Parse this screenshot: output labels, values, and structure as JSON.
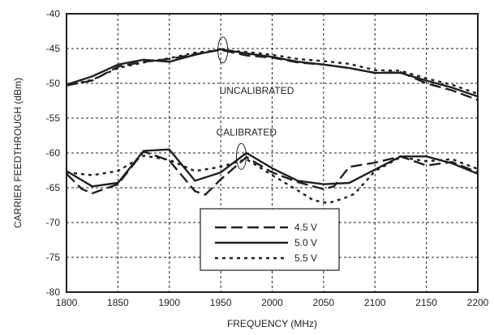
{
  "chart_data": {
    "type": "line",
    "xlabel": "FREQUENCY (MHz)",
    "ylabel": "CARRIER FEEDTHROUGH (dBm)",
    "xlim": [
      1800,
      2200
    ],
    "ylim": [
      -80,
      -40
    ],
    "x_ticks": [
      "1800",
      "1850",
      "1900",
      "1950",
      "2000",
      "2050",
      "2100",
      "2150",
      "2200"
    ],
    "y_ticks": [
      "-40",
      "-45",
      "-50",
      "-55",
      "-60",
      "-65",
      "-70",
      "-75",
      "-80"
    ],
    "grid": true,
    "legend_position": "lower-center",
    "colors": {
      "ink": "#231f20",
      "background": "#ffffff"
    },
    "annotations": [
      {
        "text": "UNCALIBRATED",
        "x": 1985,
        "y": -51.5
      },
      {
        "text": "CALIBRATED",
        "x": 1975,
        "y": -57.5
      }
    ],
    "groups": [
      {
        "label": "UNCALIBRATED",
        "series": [
          {
            "name": "4.5 V",
            "dash": "dashed",
            "x": [
              1800,
              1825,
              1850,
              1875,
              1900,
              1925,
              1950,
              1975,
              2000,
              2025,
              2050,
              2075,
              2100,
              2125,
              2150,
              2175,
              2200
            ],
            "y": [
              -50.3,
              -49.6,
              -47.6,
              -46.9,
              -46.5,
              -45.8,
              -45.2,
              -46.0,
              -46.3,
              -47.0,
              -47.3,
              -47.8,
              -48.5,
              -48.4,
              -50.0,
              -51.0,
              -52.4
            ]
          },
          {
            "name": "5.0 V",
            "dash": "solid",
            "x": [
              1800,
              1825,
              1850,
              1875,
              1900,
              1925,
              1950,
              1975,
              2000,
              2025,
              2050,
              2075,
              2100,
              2125,
              2150,
              2175,
              2200
            ],
            "y": [
              -50.2,
              -49.0,
              -47.3,
              -46.6,
              -46.9,
              -45.9,
              -45.1,
              -45.7,
              -46.2,
              -46.9,
              -47.3,
              -47.8,
              -48.5,
              -48.5,
              -49.6,
              -50.6,
              -51.9
            ]
          },
          {
            "name": "5.5 V",
            "dash": "dotted",
            "x": [
              1800,
              1825,
              1850,
              1875,
              1900,
              1925,
              1950,
              1975,
              2000,
              2025,
              2050,
              2075,
              2100,
              2125,
              2150,
              2175,
              2200
            ],
            "y": [
              -50.3,
              -49.5,
              -47.8,
              -47.0,
              -46.4,
              -45.6,
              -45.2,
              -45.5,
              -45.9,
              -46.5,
              -46.8,
              -47.2,
              -48.1,
              -48.2,
              -49.3,
              -50.2,
              -51.5
            ]
          }
        ]
      },
      {
        "label": "CALIBRATED",
        "series": [
          {
            "name": "4.5 V",
            "dash": "dashed",
            "x": [
              1800,
              1815,
              1825,
              1850,
              1875,
              1900,
              1925,
              1935,
              1950,
              1975,
              2000,
              2025,
              2050,
              2060,
              2075,
              2100,
              2125,
              2150,
              2175,
              2200
            ],
            "y": [
              -63.0,
              -65.2,
              -65.8,
              -64.5,
              -59.8,
              -61.1,
              -65.5,
              -66.0,
              -63.8,
              -60.6,
              -62.8,
              -64.2,
              -65.2,
              -64.8,
              -62.0,
              -61.4,
              -60.5,
              -61.8,
              -61.3,
              -62.8
            ]
          },
          {
            "name": "5.0 V",
            "dash": "solid",
            "x": [
              1800,
              1825,
              1850,
              1875,
              1900,
              1925,
              1950,
              1975,
              2000,
              2025,
              2050,
              2075,
              2100,
              2125,
              2150,
              2175,
              2200
            ],
            "y": [
              -62.6,
              -64.8,
              -64.3,
              -59.7,
              -59.5,
              -64.0,
              -62.8,
              -60.0,
              -62.2,
              -64.0,
              -64.5,
              -64.3,
              -62.4,
              -60.5,
              -60.5,
              -61.5,
              -63.0
            ]
          },
          {
            "name": "5.5 V",
            "dash": "dotted",
            "x": [
              1800,
              1825,
              1850,
              1875,
              1900,
              1925,
              1950,
              1975,
              2000,
              2025,
              2040,
              2055,
              2070,
              2080,
              2100,
              2125,
              2150,
              2175,
              2200
            ],
            "y": [
              -62.8,
              -63.2,
              -62.6,
              -60.4,
              -61.0,
              -62.6,
              -62.0,
              -60.9,
              -63.2,
              -65.4,
              -66.8,
              -67.2,
              -66.5,
              -65.9,
              -62.6,
              -60.6,
              -61.2,
              -60.9,
              -62.3
            ]
          }
        ]
      }
    ],
    "markers": [
      {
        "type": "ellipse",
        "x": 1952,
        "y": -45.2
      },
      {
        "type": "ellipse",
        "x": 1970,
        "y": -60.5
      }
    ],
    "legend": [
      {
        "label": "4.5 V",
        "dash": "dashed"
      },
      {
        "label": "5.0 V",
        "dash": "solid"
      },
      {
        "label": "5.5 V",
        "dash": "dotted"
      }
    ]
  }
}
